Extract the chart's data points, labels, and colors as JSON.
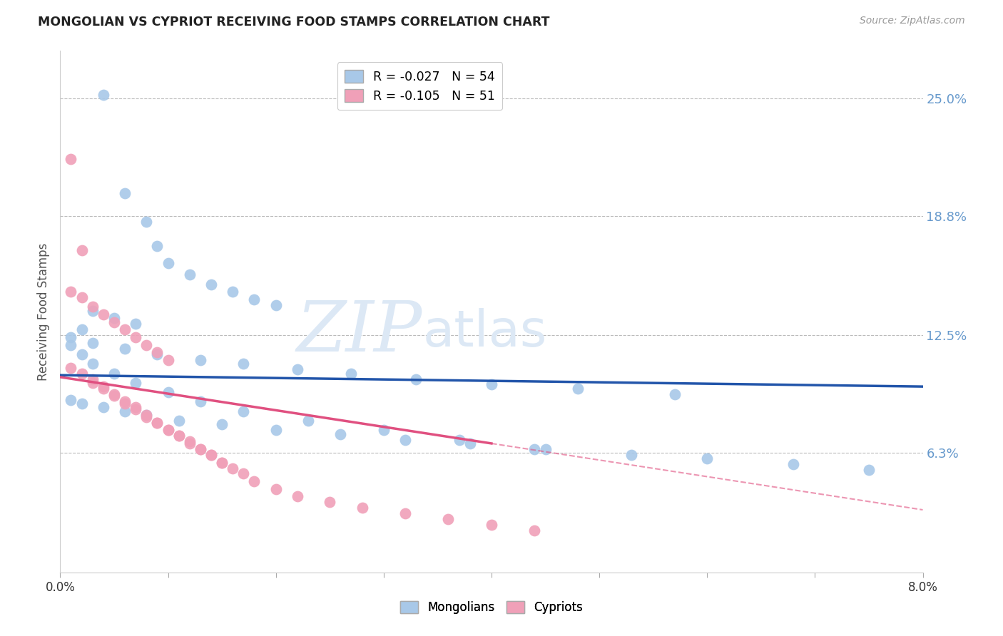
{
  "title": "MONGOLIAN VS CYPRIOT RECEIVING FOOD STAMPS CORRELATION CHART",
  "source": "Source: ZipAtlas.com",
  "ylabel": "Receiving Food Stamps",
  "right_yticks": [
    "25.0%",
    "18.8%",
    "12.5%",
    "6.3%"
  ],
  "right_ytick_vals": [
    0.25,
    0.188,
    0.125,
    0.063
  ],
  "legend_mongolian_r": "-0.027",
  "legend_mongolian_n": "54",
  "legend_cypriot_r": "-0.105",
  "legend_cypriot_n": "51",
  "mongolian_color": "#a8c8e8",
  "cypriot_color": "#f0a0b8",
  "trend_mongolian_color": "#2255aa",
  "trend_cypriot_color": "#e05080",
  "xlim": [
    0.0,
    0.08
  ],
  "ylim": [
    0.0,
    0.275
  ],
  "background_color": "#ffffff",
  "grid_color": "#bbbbbb",
  "watermark_color": "#dce8f5",
  "mon_x": [
    0.004,
    0.006,
    0.008,
    0.009,
    0.01,
    0.012,
    0.014,
    0.016,
    0.018,
    0.02,
    0.003,
    0.005,
    0.007,
    0.002,
    0.001,
    0.003,
    0.006,
    0.009,
    0.013,
    0.017,
    0.022,
    0.027,
    0.033,
    0.04,
    0.048,
    0.057,
    0.001,
    0.002,
    0.004,
    0.006,
    0.008,
    0.011,
    0.015,
    0.02,
    0.026,
    0.032,
    0.038,
    0.045,
    0.053,
    0.06,
    0.068,
    0.075,
    0.001,
    0.002,
    0.003,
    0.005,
    0.007,
    0.01,
    0.013,
    0.017,
    0.023,
    0.03,
    0.037,
    0.044
  ],
  "mon_y": [
    0.252,
    0.2,
    0.185,
    0.172,
    0.163,
    0.157,
    0.152,
    0.148,
    0.144,
    0.141,
    0.138,
    0.134,
    0.131,
    0.128,
    0.124,
    0.121,
    0.118,
    0.115,
    0.112,
    0.11,
    0.107,
    0.105,
    0.102,
    0.099,
    0.097,
    0.094,
    0.091,
    0.089,
    0.087,
    0.085,
    0.083,
    0.08,
    0.078,
    0.075,
    0.073,
    0.07,
    0.068,
    0.065,
    0.062,
    0.06,
    0.057,
    0.054,
    0.12,
    0.115,
    0.11,
    0.105,
    0.1,
    0.095,
    0.09,
    0.085,
    0.08,
    0.075,
    0.07,
    0.065
  ],
  "cyp_x": [
    0.001,
    0.002,
    0.003,
    0.004,
    0.005,
    0.006,
    0.007,
    0.008,
    0.009,
    0.01,
    0.001,
    0.002,
    0.003,
    0.004,
    0.005,
    0.006,
    0.007,
    0.008,
    0.009,
    0.01,
    0.011,
    0.012,
    0.013,
    0.014,
    0.015,
    0.001,
    0.002,
    0.003,
    0.004,
    0.005,
    0.006,
    0.007,
    0.008,
    0.009,
    0.01,
    0.011,
    0.012,
    0.013,
    0.014,
    0.015,
    0.016,
    0.017,
    0.018,
    0.02,
    0.022,
    0.025,
    0.028,
    0.032,
    0.036,
    0.04,
    0.044
  ],
  "cyp_y": [
    0.148,
    0.145,
    0.14,
    0.136,
    0.132,
    0.128,
    0.124,
    0.12,
    0.116,
    0.112,
    0.108,
    0.105,
    0.102,
    0.098,
    0.094,
    0.09,
    0.087,
    0.083,
    0.079,
    0.075,
    0.072,
    0.068,
    0.065,
    0.062,
    0.058,
    0.218,
    0.17,
    0.1,
    0.097,
    0.093,
    0.089,
    0.086,
    0.082,
    0.079,
    0.075,
    0.072,
    0.069,
    0.065,
    0.062,
    0.058,
    0.055,
    0.052,
    0.048,
    0.044,
    0.04,
    0.037,
    0.034,
    0.031,
    0.028,
    0.025,
    0.022
  ]
}
